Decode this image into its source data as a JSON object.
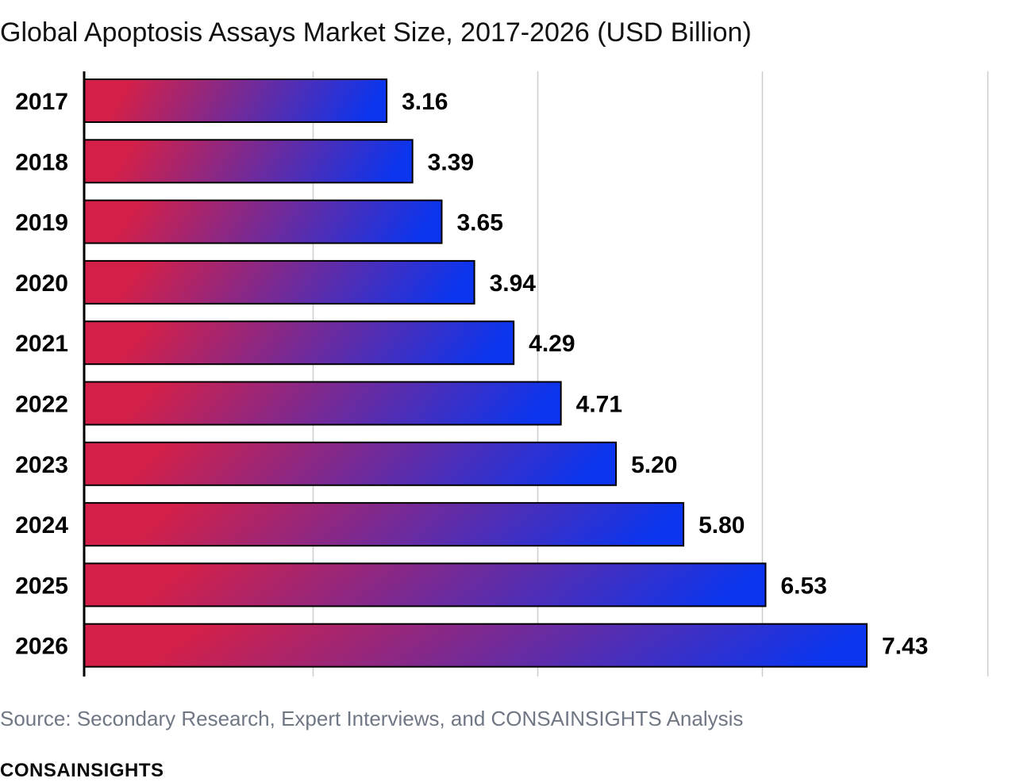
{
  "page": {
    "title": "Global Apoptosis Assays Market Size, 2017-2026 (USD Billion)",
    "source": "Source: Secondary Research, Expert Interviews, and CONSAINSIGHTS Analysis",
    "brand": "CONSAINSIGHTS"
  },
  "colors": {
    "bar_gradient_start": "#d42048",
    "bar_gradient_end": "#0b35ee",
    "bar_outline": "#000000",
    "grid": "#cccccc",
    "axis": "#000000",
    "text": "#000000"
  },
  "chart_data": {
    "type": "bar",
    "orientation": "horizontal",
    "title": "Global Apoptosis Assays Market Size, 2017-2026 (USD Billion)",
    "categories": [
      "2017",
      "2018",
      "2019",
      "2020",
      "2021",
      "2022",
      "2023",
      "2024",
      "2025",
      "2026"
    ],
    "values": [
      3.16,
      3.39,
      3.65,
      3.94,
      4.29,
      4.71,
      5.2,
      5.8,
      6.53,
      7.43
    ],
    "value_labels": [
      "3.16",
      "3.39",
      "3.65",
      "3.94",
      "4.29",
      "4.71",
      "5.20",
      "5.80",
      "6.53",
      "7.43"
    ],
    "xlim": [
      0.47,
      8.75
    ],
    "x_gridlines": [
      2.5,
      4.5,
      6.5,
      8.5
    ],
    "x_tick_labels_shown": false,
    "grid": true,
    "legend": "none"
  }
}
